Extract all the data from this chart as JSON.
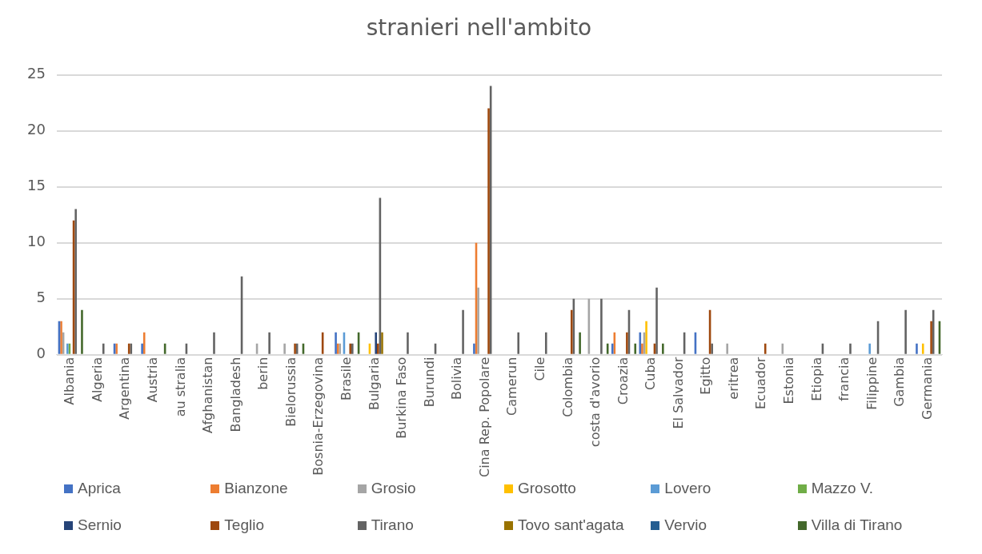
{
  "chart_data": {
    "type": "bar",
    "title": "stranieri nell'ambito",
    "categories": [
      "Albania",
      "Algeria",
      "Argentina",
      "Austria",
      "au stralia",
      "Afghanistan",
      "Bangladesh",
      "berin",
      "Bielorussia",
      "Bosnia-Erzegovina",
      "Brasile",
      "Bulgaria",
      "Burkina Faso",
      "Burundi",
      "Bolivia",
      "Cina Rep. Popolare",
      "Camerun",
      "Cile",
      "Colombia",
      "costa d'avorio",
      "Croazia",
      "Cuba",
      "El Salvador",
      "Egitto",
      "eritrea",
      "Ecuador",
      "Estonia",
      "Etiopia",
      "francia",
      "Filippine",
      "Gambia",
      "Germania"
    ],
    "series": [
      {
        "name": "Aprica",
        "color": "#4472c4",
        "values": [
          3,
          0,
          1,
          1,
          0,
          0,
          0,
          0,
          0,
          0,
          2,
          0,
          0,
          0,
          0,
          1,
          0,
          0,
          0,
          0,
          1,
          2,
          0,
          2,
          0,
          0,
          0,
          0,
          0,
          0,
          0,
          1
        ]
      },
      {
        "name": "Bianzone",
        "color": "#ed7d31",
        "values": [
          3,
          0,
          1,
          2,
          0,
          0,
          0,
          0,
          0,
          0,
          1,
          0,
          0,
          0,
          0,
          10,
          0,
          0,
          0,
          0,
          2,
          1,
          0,
          0,
          0,
          0,
          0,
          0,
          0,
          0,
          0,
          0
        ]
      },
      {
        "name": "Grosio",
        "color": "#a5a5a5",
        "values": [
          2,
          0,
          0,
          0,
          0,
          0,
          0,
          1,
          1,
          0,
          1,
          0,
          0,
          0,
          0,
          6,
          0,
          0,
          0,
          5,
          0,
          2,
          0,
          0,
          1,
          0,
          1,
          0,
          0,
          0,
          0,
          0
        ]
      },
      {
        "name": "Grosotto",
        "color": "#ffc000",
        "values": [
          0,
          0,
          0,
          0,
          0,
          0,
          0,
          0,
          0,
          0,
          0,
          1,
          0,
          0,
          0,
          0,
          0,
          0,
          0,
          0,
          0,
          3,
          0,
          0,
          0,
          0,
          0,
          0,
          0,
          0,
          0,
          1
        ]
      },
      {
        "name": "Lovero",
        "color": "#5b9bd5",
        "values": [
          1,
          0,
          0,
          0,
          0,
          0,
          0,
          0,
          0,
          0,
          2,
          0,
          0,
          0,
          0,
          0,
          0,
          0,
          0,
          0,
          0,
          0,
          0,
          0,
          0,
          0,
          0,
          0,
          0,
          1,
          0,
          0
        ]
      },
      {
        "name": "Mazzo V.",
        "color": "#70ad47",
        "values": [
          1,
          0,
          0,
          0,
          0,
          0,
          0,
          0,
          0,
          0,
          0,
          0,
          0,
          0,
          0,
          0,
          0,
          0,
          0,
          0,
          0,
          0,
          0,
          0,
          0,
          0,
          0,
          0,
          0,
          0,
          0,
          0
        ]
      },
      {
        "name": "Sernio",
        "color": "#264478",
        "values": [
          0,
          0,
          0,
          0,
          0,
          0,
          0,
          0,
          0,
          0,
          0,
          2,
          0,
          0,
          0,
          0,
          0,
          0,
          0,
          0,
          0,
          0,
          0,
          0,
          0,
          0,
          0,
          0,
          0,
          0,
          0,
          0
        ]
      },
      {
        "name": "Teglio",
        "color": "#9e480e",
        "values": [
          12,
          0,
          1,
          0,
          0,
          0,
          0,
          0,
          1,
          2,
          1,
          1,
          0,
          0,
          0,
          22,
          0,
          0,
          4,
          0,
          2,
          1,
          0,
          4,
          0,
          1,
          0,
          0,
          0,
          0,
          0,
          3
        ]
      },
      {
        "name": "Tirano",
        "color": "#636363",
        "values": [
          13,
          1,
          1,
          0,
          1,
          2,
          7,
          2,
          1,
          0,
          1,
          14,
          2,
          1,
          4,
          24,
          2,
          2,
          5,
          5,
          4,
          6,
          2,
          1,
          0,
          0,
          0,
          1,
          1,
          3,
          4,
          4
        ]
      },
      {
        "name": "Tovo sant'agata",
        "color": "#997300",
        "values": [
          0,
          0,
          0,
          0,
          0,
          0,
          0,
          0,
          0,
          0,
          0,
          2,
          0,
          0,
          0,
          0,
          0,
          0,
          0,
          0,
          0,
          0,
          0,
          0,
          0,
          0,
          0,
          0,
          0,
          0,
          0,
          0
        ]
      },
      {
        "name": "Vervio",
        "color": "#255e91",
        "values": [
          0,
          0,
          0,
          0,
          0,
          0,
          0,
          0,
          0,
          0,
          0,
          0,
          0,
          0,
          0,
          0,
          0,
          0,
          0,
          0,
          0,
          0,
          0,
          0,
          0,
          0,
          0,
          0,
          0,
          0,
          0,
          0
        ]
      },
      {
        "name": "Villa di Tirano",
        "color": "#43682b",
        "values": [
          4,
          0,
          0,
          1,
          0,
          0,
          0,
          0,
          1,
          0,
          2,
          0,
          0,
          0,
          0,
          0,
          0,
          0,
          2,
          1,
          1,
          1,
          0,
          0,
          0,
          0,
          0,
          0,
          0,
          0,
          0,
          3
        ]
      }
    ],
    "ylim": [
      0,
      25
    ],
    "yticks": [
      0,
      5,
      10,
      15,
      20,
      25
    ],
    "grid": "y",
    "legend": "bottom"
  }
}
